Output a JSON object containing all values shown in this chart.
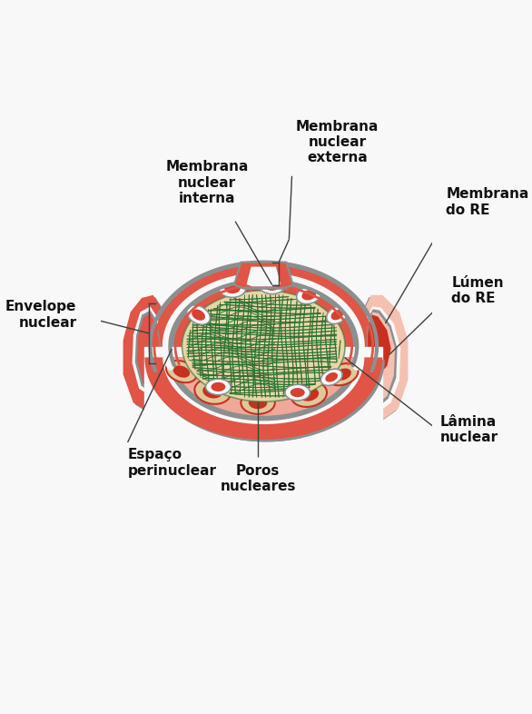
{
  "bg_color": "#ffffff",
  "labels": {
    "envelope_nuclear": "Envelope\nnuclear",
    "membrana_interna": "Membrana\nnuclear\ninterna",
    "membrana_externa": "Membrana\nnuclear\nexterna",
    "membrana_re": "Membrana\ndo RE",
    "lumen_re": "Lúmen\ndo RE",
    "espaco_perinuclear": "Espaço\nperinuclear",
    "poros_nucleares": "Poros\nnucleares",
    "lamina_nuclear": "Lâmina\nnuclear"
  },
  "colors": {
    "red_dark": "#c83020",
    "red_med": "#d84030",
    "red_main": "#e05545",
    "red_light": "#f0a898",
    "red_pale": "#f5c0b0",
    "salmon": "#f0b8a0",
    "gray_border": "#8a9090",
    "gray_light": "#b0b8b8",
    "white_space": "#f8f8f8",
    "nucleus_fill": "#e8d5a8",
    "nucleus_fill2": "#dfc898",
    "nucleus_tan": "#d8c090",
    "green_chromatin": "#2a7030",
    "pore_white": "#ffffff",
    "line_color": "#404040",
    "text_color": "#111111"
  },
  "font_size_label": 11
}
